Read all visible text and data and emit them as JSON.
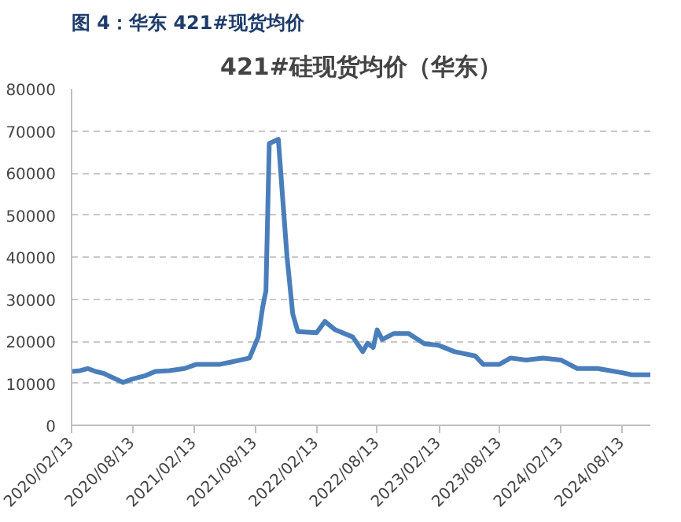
{
  "chart_data": {
    "type": "line",
    "title": "421#硅现货均价（华东）",
    "annotations": [
      "图 4：华东 421#现货均价"
    ],
    "x": [
      "2020-02-13",
      "2020-03-10",
      "2020-04-01",
      "2020-04-25",
      "2020-05-20",
      "2020-07-16",
      "2020-08-13",
      "2020-09-20",
      "2020-10-20",
      "2020-12-01",
      "2021-01-15",
      "2021-02-20",
      "2021-05-01",
      "2021-06-01",
      "2021-07-28",
      "2021-08-23",
      "2021-09-05",
      "2021-09-15",
      "2021-09-25",
      "2021-10-22",
      "2021-11-03",
      "2021-11-17",
      "2021-12-04",
      "2021-12-19",
      "2022-02-13",
      "2022-03-10",
      "2022-04-10",
      "2022-06-01",
      "2022-07-01",
      "2022-07-15",
      "2022-08-01",
      "2022-08-13",
      "2022-08-28",
      "2022-10-01",
      "2022-11-15",
      "2023-01-01",
      "2023-02-13",
      "2023-04-01",
      "2023-06-01",
      "2023-06-25",
      "2023-08-13",
      "2023-09-15",
      "2023-11-01",
      "2023-12-20",
      "2024-02-13",
      "2024-04-01",
      "2024-06-01",
      "2024-08-13",
      "2024-09-10",
      "2024-11-05"
    ],
    "series": [
      {
        "color": "#4a7ebb",
        "values": [
          12800,
          13000,
          13500,
          12800,
          12300,
          10200,
          11000,
          11800,
          12800,
          13000,
          13500,
          14500,
          14500,
          15000,
          16000,
          21000,
          28000,
          32000,
          67000,
          68000,
          55000,
          40000,
          26500,
          22300,
          22000,
          24700,
          22700,
          21000,
          17500,
          19500,
          18500,
          22700,
          20400,
          21800,
          21800,
          19400,
          19000,
          17500,
          16500,
          14500,
          14500,
          16000,
          15500,
          16000,
          15500,
          13500,
          13500,
          12500,
          12000,
          12000
        ]
      }
    ],
    "xlim": [
      "2020-02-13",
      "2024-11-05"
    ],
    "xticks": [
      {
        "value": "2020-02-13",
        "label": "2020/02/13"
      },
      {
        "value": "2020-08-13",
        "label": "2020/08/13"
      },
      {
        "value": "2021-02-13",
        "label": "2021/02/13"
      },
      {
        "value": "2021-08-13",
        "label": "2021/08/13"
      },
      {
        "value": "2022-02-13",
        "label": "2022/02/13"
      },
      {
        "value": "2022-08-13",
        "label": "2022/08/13"
      },
      {
        "value": "2023-02-13",
        "label": "2023/02/13"
      },
      {
        "value": "2023-08-13",
        "label": "2023/08/13"
      },
      {
        "value": "2024-02-13",
        "label": "2024/02/13"
      },
      {
        "value": "2024-08-13",
        "label": "2024/08/13"
      }
    ],
    "ylim": [
      0,
      80000
    ],
    "yticks": [
      0,
      10000,
      20000,
      30000,
      40000,
      50000,
      60000,
      70000,
      80000
    ],
    "grid": "y",
    "marker": "none",
    "line_style": "solid"
  }
}
